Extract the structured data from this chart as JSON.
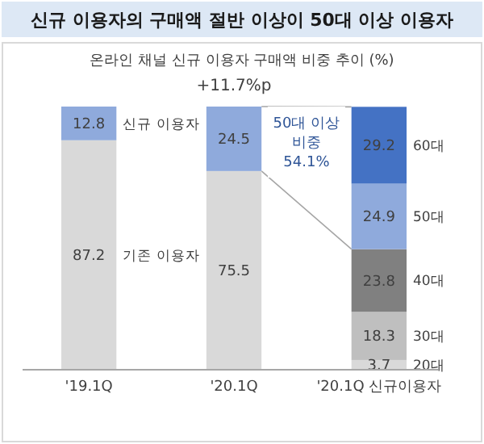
{
  "chart_data": {
    "type": "bar",
    "title": "신규 이용자의 구매액 절반 이상이 50대 이상 이용자",
    "subtitle": "온라인 채널 신규 이용자 구매액 비중 추이 (%)",
    "categories": [
      "'19.1Q",
      "'20.1Q",
      "'20.1Q 신규이용자"
    ],
    "stacked": true,
    "ylim": [
      0,
      100
    ],
    "tick_labels": "x",
    "data_labels": true,
    "series": [
      {
        "name": "기존 이용자",
        "color": "#d9d9d9",
        "values": [
          87.2,
          75.5,
          null
        ]
      },
      {
        "name": "신규 이용자",
        "color": "#8faadc",
        "values": [
          12.8,
          24.5,
          null
        ]
      },
      {
        "name": "20대",
        "color": "#d9d9d9",
        "values": [
          null,
          null,
          3.7
        ]
      },
      {
        "name": "30대",
        "color": "#bfbfbf",
        "values": [
          null,
          null,
          18.3
        ]
      },
      {
        "name": "40대",
        "color": "#808080",
        "values": [
          null,
          null,
          23.8
        ]
      },
      {
        "name": "50대",
        "color": "#8faadc",
        "values": [
          null,
          null,
          24.9
        ]
      },
      {
        "name": "60대",
        "color": "#4472c4",
        "values": [
          null,
          null,
          29.2
        ]
      }
    ],
    "annotations": [
      "+11.7%p",
      "50대 이상\n비중\n54.1%"
    ]
  }
}
